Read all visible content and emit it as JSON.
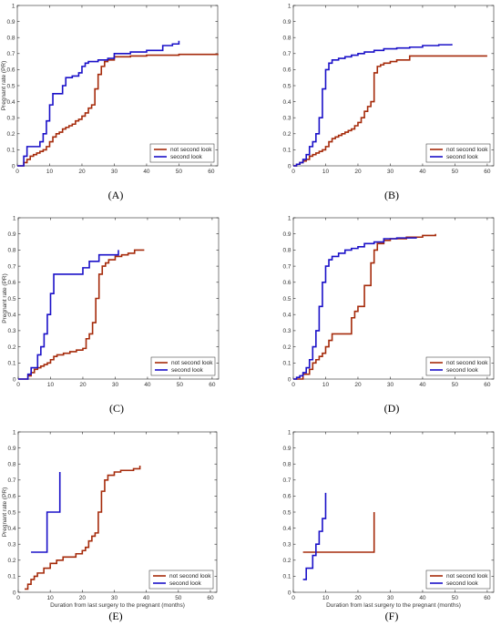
{
  "chart_data": [
    {
      "type": "line",
      "panel_label": "(A)",
      "ylabel": "Pregnant rate (PR)",
      "xlabel": "",
      "xlim": [
        0,
        62
      ],
      "ylim": [
        0,
        1
      ],
      "x_ticks": [
        0,
        10,
        20,
        30,
        40,
        50,
        60
      ],
      "y_ticks": [
        0,
        0.1,
        0.2,
        0.3,
        0.4,
        0.5,
        0.6,
        0.7,
        0.8,
        0.9,
        1
      ],
      "legend_position": "bottom-right",
      "series": [
        {
          "name": "not second look",
          "color": "#a52a0a",
          "x": [
            0,
            2,
            3,
            4,
            5,
            6,
            7,
            8,
            9,
            10,
            11,
            12,
            13,
            14,
            15,
            16,
            17,
            18,
            19,
            20,
            21,
            22,
            23,
            24,
            25,
            26,
            27,
            28,
            30,
            35,
            40,
            50,
            62
          ],
          "y": [
            0,
            0.02,
            0.04,
            0.06,
            0.07,
            0.08,
            0.09,
            0.1,
            0.12,
            0.15,
            0.18,
            0.2,
            0.21,
            0.23,
            0.24,
            0.25,
            0.26,
            0.28,
            0.29,
            0.31,
            0.33,
            0.36,
            0.38,
            0.48,
            0.57,
            0.62,
            0.65,
            0.66,
            0.68,
            0.685,
            0.69,
            0.695,
            0.7
          ]
        },
        {
          "name": "second look",
          "color": "#1a10c8",
          "x": [
            0,
            2,
            3,
            5,
            7,
            8,
            9,
            10,
            11,
            12,
            14,
            15,
            17,
            19,
            20,
            21,
            22,
            25,
            28,
            30,
            35,
            40,
            45,
            48,
            50
          ],
          "y": [
            0,
            0.06,
            0.12,
            0.12,
            0.15,
            0.2,
            0.28,
            0.38,
            0.45,
            0.45,
            0.5,
            0.55,
            0.56,
            0.58,
            0.62,
            0.64,
            0.65,
            0.66,
            0.67,
            0.7,
            0.71,
            0.72,
            0.75,
            0.76,
            0.78
          ]
        }
      ]
    },
    {
      "type": "line",
      "panel_label": "(B)",
      "ylabel": "",
      "xlabel": "",
      "xlim": [
        0,
        62
      ],
      "ylim": [
        0,
        1
      ],
      "x_ticks": [
        0,
        10,
        20,
        30,
        40,
        50,
        60
      ],
      "y_ticks": [
        0,
        0.1,
        0.2,
        0.3,
        0.4,
        0.5,
        0.6,
        0.7,
        0.8,
        0.9,
        1
      ],
      "legend_position": "bottom-right",
      "series": [
        {
          "name": "not second look",
          "color": "#a52a0a",
          "x": [
            0,
            1,
            2,
            3,
            4,
            5,
            6,
            7,
            8,
            9,
            10,
            11,
            12,
            13,
            14,
            15,
            16,
            17,
            18,
            19,
            20,
            21,
            22,
            23,
            24,
            25,
            26,
            27,
            28,
            30,
            32,
            36,
            60
          ],
          "y": [
            0,
            0.01,
            0.02,
            0.03,
            0.04,
            0.06,
            0.07,
            0.08,
            0.09,
            0.1,
            0.12,
            0.15,
            0.17,
            0.18,
            0.19,
            0.2,
            0.21,
            0.22,
            0.23,
            0.25,
            0.27,
            0.3,
            0.34,
            0.37,
            0.4,
            0.58,
            0.62,
            0.63,
            0.64,
            0.65,
            0.66,
            0.685,
            0.685
          ]
        },
        {
          "name": "second look",
          "color": "#1a10c8",
          "x": [
            0,
            1,
            2,
            3,
            4,
            5,
            6,
            7,
            8,
            9,
            10,
            11,
            12,
            14,
            16,
            18,
            20,
            22,
            25,
            28,
            32,
            36,
            40,
            45,
            49
          ],
          "y": [
            0,
            0.01,
            0.02,
            0.04,
            0.07,
            0.12,
            0.15,
            0.2,
            0.3,
            0.48,
            0.6,
            0.64,
            0.66,
            0.67,
            0.68,
            0.69,
            0.7,
            0.71,
            0.72,
            0.73,
            0.735,
            0.74,
            0.75,
            0.755,
            0.76
          ]
        }
      ]
    },
    {
      "type": "line",
      "panel_label": "(C)",
      "ylabel": "Pregnant rate (PR)",
      "xlabel": "",
      "xlim": [
        0,
        62
      ],
      "ylim": [
        0,
        1
      ],
      "x_ticks": [
        0,
        10,
        20,
        30,
        40,
        50,
        60
      ],
      "y_ticks": [
        0,
        0.1,
        0.2,
        0.3,
        0.4,
        0.5,
        0.6,
        0.7,
        0.8,
        0.9,
        1
      ],
      "legend_position": "bottom-right",
      "series": [
        {
          "name": "not second look",
          "color": "#a52a0a",
          "x": [
            0,
            3,
            4,
            5,
            6,
            7,
            8,
            9,
            10,
            11,
            12,
            14,
            16,
            18,
            20,
            21,
            22,
            23,
            24,
            25,
            26,
            27,
            28,
            30,
            32,
            34,
            36,
            39
          ],
          "y": [
            0,
            0.02,
            0.04,
            0.06,
            0.07,
            0.08,
            0.09,
            0.1,
            0.12,
            0.14,
            0.15,
            0.16,
            0.17,
            0.18,
            0.19,
            0.25,
            0.28,
            0.35,
            0.5,
            0.65,
            0.7,
            0.72,
            0.74,
            0.76,
            0.77,
            0.78,
            0.8,
            0.8
          ]
        },
        {
          "name": "second look",
          "color": "#1a10c8",
          "x": [
            0,
            3,
            4,
            6,
            7,
            8,
            9,
            10,
            11,
            20,
            22,
            25,
            31
          ],
          "y": [
            0,
            0.03,
            0.07,
            0.15,
            0.2,
            0.28,
            0.4,
            0.53,
            0.65,
            0.69,
            0.73,
            0.77,
            0.8
          ]
        }
      ]
    },
    {
      "type": "line",
      "panel_label": "(D)",
      "ylabel": "",
      "xlabel": "",
      "xlim": [
        0,
        62
      ],
      "ylim": [
        0,
        1
      ],
      "x_ticks": [
        0,
        10,
        20,
        30,
        40,
        50,
        60
      ],
      "y_ticks": [
        0,
        0.1,
        0.2,
        0.3,
        0.4,
        0.5,
        0.6,
        0.7,
        0.8,
        0.9,
        1
      ],
      "legend_position": "bottom-right",
      "series": [
        {
          "name": "not second look",
          "color": "#a52a0a",
          "x": [
            0,
            3,
            5,
            6,
            7,
            8,
            9,
            10,
            11,
            12,
            18,
            19,
            20,
            22,
            24,
            25,
            26,
            28,
            30,
            35,
            40,
            44
          ],
          "y": [
            0,
            0.03,
            0.06,
            0.1,
            0.12,
            0.14,
            0.16,
            0.2,
            0.24,
            0.28,
            0.38,
            0.42,
            0.45,
            0.58,
            0.72,
            0.8,
            0.84,
            0.86,
            0.87,
            0.88,
            0.89,
            0.9
          ]
        },
        {
          "name": "second look",
          "color": "#1a10c8",
          "x": [
            0,
            1,
            2,
            3,
            4,
            5,
            6,
            7,
            8,
            9,
            10,
            11,
            12,
            14,
            16,
            18,
            20,
            22,
            25,
            28,
            32,
            38
          ],
          "y": [
            0,
            0.01,
            0.02,
            0.04,
            0.07,
            0.12,
            0.2,
            0.3,
            0.45,
            0.6,
            0.7,
            0.74,
            0.76,
            0.78,
            0.8,
            0.81,
            0.82,
            0.84,
            0.85,
            0.87,
            0.875,
            0.88
          ]
        }
      ]
    },
    {
      "type": "line",
      "panel_label": "(E)",
      "ylabel": "Pregnant rate (PR)",
      "xlabel": "Duration from last surgery to the pregnant (months)",
      "xlim": [
        0,
        62
      ],
      "ylim": [
        0,
        1
      ],
      "x_ticks": [
        0,
        10,
        20,
        30,
        40,
        50,
        60
      ],
      "y_ticks": [
        0,
        0.1,
        0.2,
        0.3,
        0.4,
        0.5,
        0.6,
        0.7,
        0.8,
        0.9,
        1
      ],
      "legend_position": "bottom-right",
      "series": [
        {
          "name": "not second look",
          "color": "#a52a0a",
          "x": [
            2,
            3,
            4,
            5,
            6,
            8,
            10,
            12,
            14,
            18,
            20,
            21,
            22,
            23,
            24,
            25,
            26,
            27,
            28,
            30,
            32,
            36,
            38
          ],
          "y": [
            0.02,
            0.05,
            0.08,
            0.1,
            0.12,
            0.15,
            0.18,
            0.2,
            0.22,
            0.24,
            0.26,
            0.28,
            0.32,
            0.35,
            0.37,
            0.5,
            0.63,
            0.7,
            0.73,
            0.75,
            0.76,
            0.77,
            0.79
          ]
        },
        {
          "name": "second look",
          "color": "#1a10c8",
          "x": [
            4,
            9,
            12,
            13
          ],
          "y": [
            0.25,
            0.5,
            0.5,
            0.75
          ]
        }
      ]
    },
    {
      "type": "line",
      "panel_label": "(F)",
      "ylabel": "",
      "xlabel": "Duration from last surgery to the pregnant (months)",
      "xlim": [
        0,
        62
      ],
      "ylim": [
        0,
        1
      ],
      "x_ticks": [
        0,
        10,
        20,
        30,
        40,
        50,
        60
      ],
      "y_ticks": [
        0,
        0.1,
        0.2,
        0.3,
        0.4,
        0.5,
        0.6,
        0.7,
        0.8,
        0.9,
        1
      ],
      "legend_position": "bottom-right",
      "series": [
        {
          "name": "not second look",
          "color": "#a52a0a",
          "x": [
            3,
            25
          ],
          "y": [
            0.25,
            0.5
          ]
        },
        {
          "name": "second look",
          "color": "#1a10c8",
          "x": [
            3,
            4,
            6,
            7,
            8,
            9,
            10
          ],
          "y": [
            0.08,
            0.15,
            0.23,
            0.3,
            0.38,
            0.46,
            0.62
          ]
        }
      ]
    }
  ]
}
